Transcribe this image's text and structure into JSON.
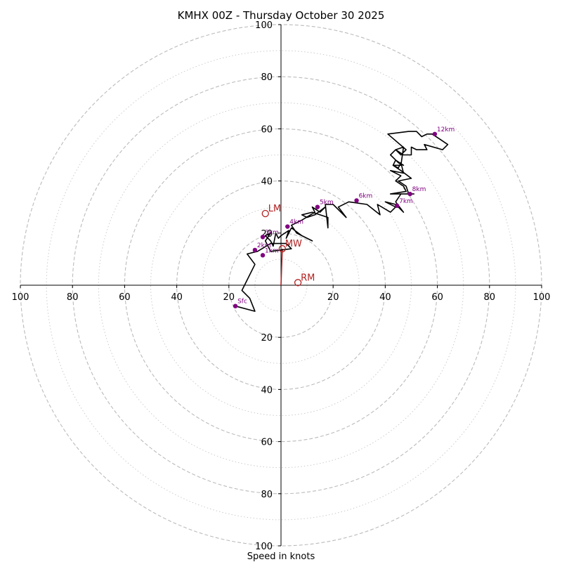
{
  "chart_data": {
    "type": "hodograph",
    "title": "KMHX 00Z - Thursday October 30 2025",
    "xlabel": "Speed in knots",
    "units": "knots",
    "xlim": [
      -100,
      100
    ],
    "ylim": [
      -100,
      100
    ],
    "major_rings": [
      20,
      40,
      60,
      80,
      100
    ],
    "minor_rings": [
      10,
      30,
      50,
      70,
      90
    ],
    "x_ticks": [
      {
        "value": -100,
        "label": "100"
      },
      {
        "value": -80,
        "label": "80"
      },
      {
        "value": -60,
        "label": "60"
      },
      {
        "value": -40,
        "label": "40"
      },
      {
        "value": -20,
        "label": "20"
      },
      {
        "value": 20,
        "label": "20"
      },
      {
        "value": 40,
        "label": "40"
      },
      {
        "value": 60,
        "label": "60"
      },
      {
        "value": 80,
        "label": "80"
      },
      {
        "value": 100,
        "label": "100"
      }
    ],
    "y_ticks": [
      {
        "value": 100,
        "label": "100"
      },
      {
        "value": 80,
        "label": "80"
      },
      {
        "value": 60,
        "label": "60"
      },
      {
        "value": 40,
        "label": "40"
      },
      {
        "value": 20,
        "label": "20"
      },
      {
        "value": -20,
        "label": "20"
      },
      {
        "value": -40,
        "label": "40"
      },
      {
        "value": -60,
        "label": "60"
      },
      {
        "value": -80,
        "label": "80"
      },
      {
        "value": -100,
        "label": "100"
      }
    ],
    "trace": [
      [
        -17.5,
        -8
      ],
      [
        -10,
        -10
      ],
      [
        -12,
        -5
      ],
      [
        -15,
        -2
      ],
      [
        -10,
        8
      ],
      [
        -13,
        12
      ],
      [
        -9,
        13
      ],
      [
        -4,
        16
      ],
      [
        2,
        16
      ],
      [
        4,
        14
      ],
      [
        -4,
        13
      ],
      [
        -6,
        17
      ],
      [
        -4,
        20
      ],
      [
        -6,
        19
      ],
      [
        -4,
        17
      ],
      [
        -3,
        15
      ],
      [
        -2,
        20
      ],
      [
        -1,
        18
      ],
      [
        0,
        19
      ],
      [
        3,
        21
      ],
      [
        2,
        18
      ],
      [
        4,
        22
      ],
      [
        8,
        19
      ],
      [
        12,
        17
      ],
      [
        6,
        20
      ],
      [
        4,
        23
      ],
      [
        8,
        25
      ],
      [
        13,
        28
      ],
      [
        12,
        30
      ],
      [
        15,
        28
      ],
      [
        17,
        30
      ],
      [
        13,
        27
      ],
      [
        10,
        26
      ],
      [
        8,
        27
      ],
      [
        12,
        28
      ],
      [
        18,
        26
      ],
      [
        18,
        22
      ],
      [
        17,
        31
      ],
      [
        20,
        31
      ],
      [
        23,
        28
      ],
      [
        25,
        26
      ],
      [
        22,
        30
      ],
      [
        26,
        32
      ],
      [
        33,
        31
      ],
      [
        38,
        27
      ],
      [
        37,
        31
      ],
      [
        42,
        28
      ],
      [
        44,
        30
      ],
      [
        40,
        32
      ],
      [
        44,
        31
      ],
      [
        47,
        28
      ],
      [
        44,
        32
      ],
      [
        46,
        35
      ],
      [
        51,
        35
      ],
      [
        46,
        35
      ],
      [
        49,
        35
      ],
      [
        48,
        38
      ],
      [
        45,
        40
      ],
      [
        50,
        41
      ],
      [
        46,
        44
      ],
      [
        43,
        46
      ],
      [
        46,
        46
      ],
      [
        47,
        53
      ],
      [
        44,
        52
      ],
      [
        47,
        50
      ],
      [
        50,
        50
      ],
      [
        50,
        53
      ],
      [
        52,
        52
      ],
      [
        56,
        52
      ],
      [
        55,
        54
      ],
      [
        62,
        52
      ],
      [
        64,
        54
      ],
      [
        61,
        56
      ],
      [
        58,
        58
      ],
      [
        56,
        58
      ],
      [
        54,
        57
      ],
      [
        52,
        59
      ],
      [
        49,
        59
      ],
      [
        41,
        58
      ],
      [
        48,
        52
      ],
      [
        46,
        50
      ],
      [
        44,
        52
      ],
      [
        42,
        50
      ],
      [
        45,
        47
      ],
      [
        47,
        46
      ],
      [
        44,
        48
      ],
      [
        43,
        46
      ],
      [
        45,
        45
      ],
      [
        46,
        47
      ],
      [
        47,
        43
      ],
      [
        42,
        44
      ],
      [
        46,
        42
      ],
      [
        44,
        40
      ],
      [
        47,
        38
      ],
      [
        48,
        36
      ],
      [
        42,
        35
      ],
      [
        49,
        35
      ]
    ],
    "height_markers": [
      {
        "label": "Sfc",
        "u": -17.5,
        "v": -8
      },
      {
        "label": "1km",
        "u": -7,
        "v": 11.5
      },
      {
        "label": "2km",
        "u": -10,
        "v": 13.5
      },
      {
        "label": "3km",
        "u": -7,
        "v": 18.5
      },
      {
        "label": "4km",
        "u": 2.5,
        "v": 22.5
      },
      {
        "label": "5km",
        "u": 14,
        "v": 30
      },
      {
        "label": "6km",
        "u": 29,
        "v": 32.5
      },
      {
        "label": "7km",
        "u": 44.5,
        "v": 30.5
      },
      {
        "label": "8km",
        "u": 49.5,
        "v": 35
      },
      {
        "label": "12km",
        "u": 59,
        "v": 58
      }
    ],
    "storm_motion": [
      {
        "label": "LM",
        "u": -6,
        "v": 27.5
      },
      {
        "label": "MW",
        "u": 0.5,
        "v": 14
      },
      {
        "label": "RM",
        "u": 6.5,
        "v": 1
      }
    ],
    "mean_wind_vector": {
      "u": 0.5,
      "v": 14
    },
    "colors": {
      "trace": "#000000",
      "marker": "#800080",
      "storm_motion": "#b22222",
      "grid": "#bbbbbb"
    }
  }
}
